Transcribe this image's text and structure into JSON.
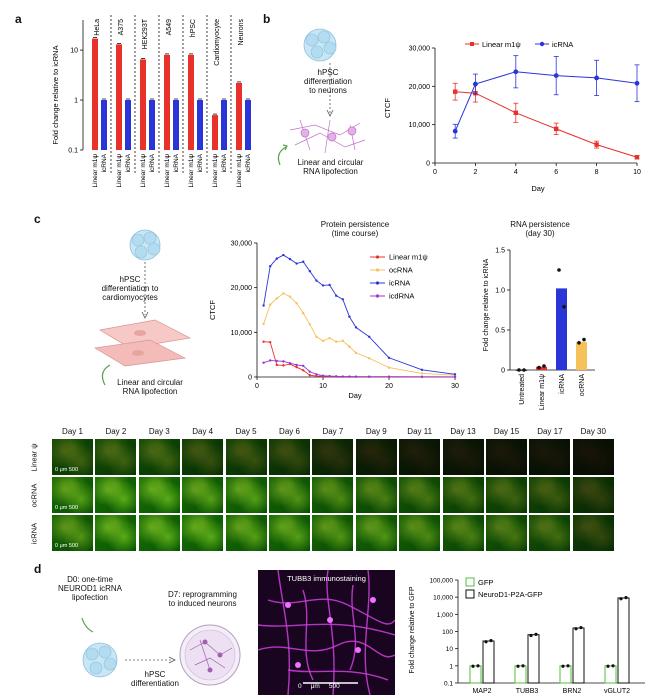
{
  "panels": {
    "a": "a",
    "b": "b",
    "c": "c",
    "d": "d"
  },
  "colors": {
    "red": "#e8312a",
    "blue": "#2a35d8",
    "yellow": "#f5c15a",
    "purple": "#9b35d8",
    "green": "#4fbf3a",
    "black": "#111111"
  },
  "panel_a": {
    "ylabel": "Fold change relative to icRNA",
    "yticks": [
      "10",
      "1",
      "0.1"
    ],
    "cell_lines": [
      "HeLa",
      "A375",
      "HEK293T",
      "A549",
      "hPSC",
      "Cardiomyocyte",
      "Neurons"
    ],
    "bar_labels": [
      "Linear m1ψ",
      "icRNA"
    ],
    "chart_data": {
      "type": "bar",
      "yscale": "log",
      "ylim": [
        0.1,
        40
      ],
      "categories": [
        "HeLa",
        "A375",
        "HEK293T",
        "A549",
        "hPSC",
        "Cardiomyocyte",
        "Neurons"
      ],
      "series": [
        {
          "name": "Linear m1ψ",
          "values": [
            17,
            13,
            6.5,
            8,
            8,
            0.5,
            2.2
          ]
        },
        {
          "name": "icRNA",
          "values": [
            1,
            1,
            1,
            1,
            1,
            1,
            1
          ]
        }
      ]
    }
  },
  "panel_b": {
    "diagram_top": "hPSC\ndifferentiation\nto neurons",
    "diagram_bottom": "Linear and circular\nRNA lipofection",
    "legend": [
      "Linear m1ψ",
      "icRNA"
    ],
    "ylabel": "CTCF",
    "xlabel": "Day",
    "yticks": [
      "0",
      "10,000",
      "20,000",
      "30,000"
    ],
    "xticks": [
      "0",
      "2",
      "4",
      "6",
      "8",
      "10"
    ],
    "chart_data": {
      "type": "line",
      "xlim": [
        0,
        10
      ],
      "ylim": [
        0,
        30000
      ],
      "x": [
        1,
        2,
        4,
        6,
        8,
        10
      ],
      "series": [
        {
          "name": "Linear m1ψ",
          "values": [
            18600,
            18200,
            13100,
            8900,
            4800,
            1500
          ],
          "err": [
            2200,
            2300,
            2500,
            1500,
            900,
            400
          ]
        },
        {
          "name": "icRNA",
          "values": [
            8300,
            20600,
            23800,
            22800,
            22200,
            20800
          ],
          "err": [
            1800,
            2600,
            4200,
            5000,
            4600,
            4800
          ]
        }
      ]
    }
  },
  "panel_c": {
    "diagram_top": "hPSC\ndifferentiation to\ncardiomyocytes",
    "diagram_bottom": "Linear and circular\nRNA lipofection",
    "protein_title": "Protein persistence\n(time course)",
    "ylabel": "CTCF",
    "xlabel": "Day",
    "yticks": [
      "0",
      "10,000",
      "20,000",
      "30,000"
    ],
    "xticks": [
      "0",
      "10",
      "20",
      "30"
    ],
    "legend": [
      "Linear m1ψ",
      "ocRNA",
      "icRNA",
      "icdRNA"
    ],
    "chart_data": {
      "type": "line",
      "xlim": [
        0,
        30
      ],
      "ylim": [
        0,
        30000
      ],
      "x": [
        1,
        2,
        3,
        4,
        5,
        6,
        7,
        8,
        9,
        10,
        11,
        12,
        13,
        14,
        15,
        17,
        20,
        25,
        30
      ],
      "series": [
        {
          "name": "Linear m1ψ",
          "values": [
            7900,
            7800,
            2700,
            2600,
            2900,
            2200,
            1500,
            400,
            200,
            150,
            120,
            100,
            80,
            70,
            60,
            50,
            40,
            30,
            20
          ]
        },
        {
          "name": "ocRNA",
          "values": [
            11900,
            16200,
            17600,
            18700,
            18000,
            16500,
            14300,
            11800,
            9000,
            8100,
            8700,
            7900,
            8100,
            6800,
            5400,
            4200,
            2100,
            800,
            400
          ]
        },
        {
          "name": "icRNA",
          "values": [
            16000,
            24800,
            26500,
            27300,
            26400,
            25400,
            25800,
            23700,
            21600,
            20500,
            20600,
            18200,
            17400,
            13500,
            11100,
            9000,
            4300,
            1600,
            600
          ]
        },
        {
          "name": "icdRNA",
          "values": [
            3200,
            3700,
            3600,
            3500,
            3100,
            2700,
            2500,
            1200,
            600,
            300,
            200,
            150,
            100,
            90,
            80,
            70,
            60,
            50,
            40
          ]
        }
      ]
    },
    "rna_title": "RNA persistence\n(day 30)",
    "rna_ylabel": "Fold change relative to icRNA",
    "rna_yticks": [
      "0",
      "0.5",
      "1.0",
      "1.5"
    ],
    "rna_categories": [
      "Untreated",
      "Linear m1ψ",
      "icRNA",
      "ocRNA"
    ],
    "rna_chart_data": {
      "type": "bar",
      "ylim": [
        0,
        1.5
      ],
      "categories": [
        "Untreated",
        "Linear m1ψ",
        "icRNA",
        "ocRNA"
      ],
      "values": [
        0.0,
        0.04,
        1.02,
        0.35
      ],
      "points": [
        [
          0.0,
          0.0
        ],
        [
          0.03,
          0.05
        ],
        [
          1.25,
          0.79
        ],
        [
          0.34,
          0.38
        ]
      ]
    },
    "days": [
      "Day 1",
      "Day 2",
      "Day 3",
      "Day 4",
      "Day 5",
      "Day 6",
      "Day 7",
      "Day 9",
      "Day 11",
      "Day 13",
      "Day 15",
      "Day 17",
      "Day 30"
    ],
    "rows": [
      "Linear ψ",
      "ocRNA",
      "icRNA"
    ],
    "scalebar": "0  μm 500",
    "intensity": [
      [
        0.55,
        0.55,
        0.55,
        0.45,
        0.45,
        0.4,
        0.25,
        0.15,
        0.1,
        0.08,
        0.06,
        0.05,
        0.03
      ],
      [
        0.85,
        0.9,
        0.9,
        0.85,
        0.85,
        0.8,
        0.75,
        0.7,
        0.65,
        0.6,
        0.55,
        0.5,
        0.35
      ],
      [
        0.8,
        0.9,
        0.9,
        0.9,
        0.85,
        0.85,
        0.8,
        0.8,
        0.75,
        0.7,
        0.65,
        0.6,
        0.4
      ]
    ]
  },
  "panel_d": {
    "diagram_top": "D0: one-time\nNEUROD1 icRNA\nlipofection",
    "diagram_right": "D7: reprogramming\nto induced neurons",
    "diagram_bottom": "hPSC\ndifferentiation",
    "image_title": "TUBB3 immunostaining",
    "scalebar": "0     μm     500",
    "ylabel": "Fold change relative to GFP",
    "yticks": [
      "100,000",
      "10,000",
      "1,000",
      "100",
      "10",
      "1",
      "0.1"
    ],
    "legend": [
      "GFP",
      "NeuroD1-P2A-GFP"
    ],
    "categories": [
      "MAP2",
      "TUBB3",
      "BRN2",
      "vGLUT2"
    ],
    "chart_data": {
      "type": "bar",
      "yscale": "log",
      "ylim": [
        0.1,
        100000
      ],
      "categories": [
        "MAP2",
        "TUBB3",
        "BRN2",
        "vGLUT2"
      ],
      "series": [
        {
          "name": "GFP",
          "values": [
            1,
            1,
            1,
            1
          ]
        },
        {
          "name": "NeuroD1-P2A-GFP",
          "values": [
            28,
            65,
            160,
            9000
          ]
        }
      ]
    }
  }
}
